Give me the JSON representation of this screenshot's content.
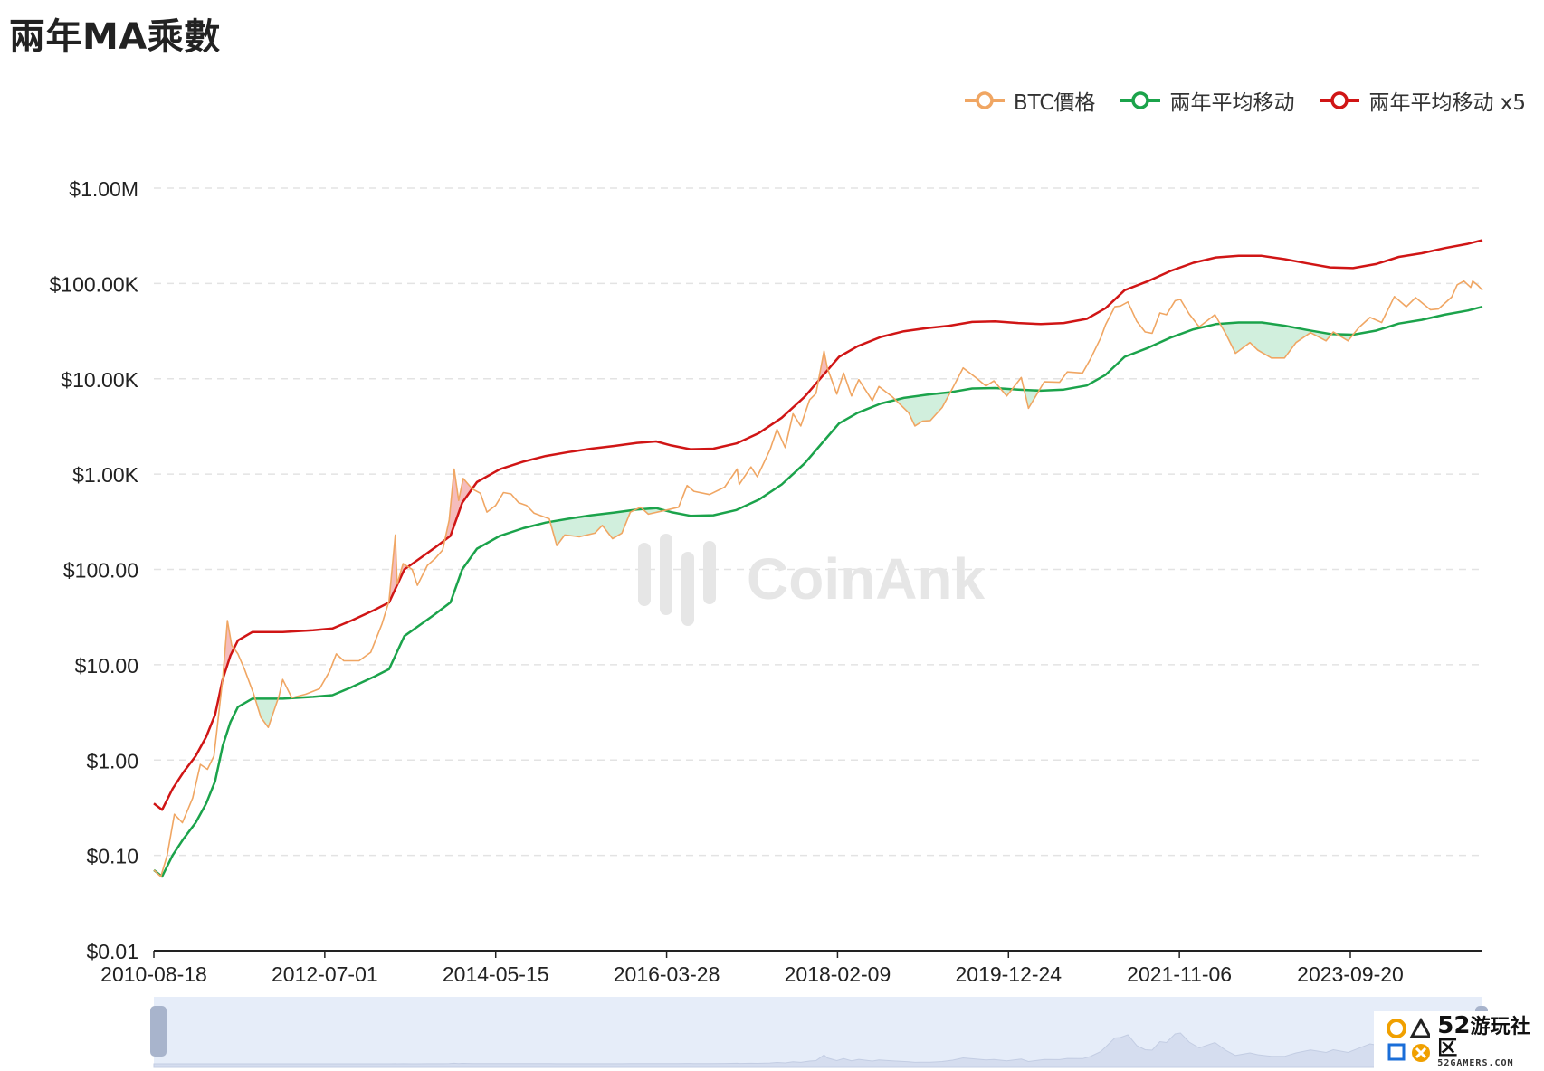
{
  "page": {
    "title": "兩年MA乘數"
  },
  "legend": [
    {
      "label": "BTC價格",
      "color": "#f0a663"
    },
    {
      "label": "兩年平均移动",
      "color": "#1ba34b"
    },
    {
      "label": "兩年平均移动 x5",
      "color": "#d01515"
    }
  ],
  "watermark": {
    "text": "CoinAnk"
  },
  "badge": {
    "number": "52",
    "name": "游玩社区",
    "site": "52GAMERS.COM"
  },
  "colors": {
    "over_fill": "#f3b0b0",
    "under_fill": "#c9ecd7",
    "grid": "#e3e3e3",
    "axis": "#222222",
    "slider_bg": "#e6edf9",
    "slider_handle": "#a8b4cc"
  },
  "chart_data": {
    "type": "line",
    "title": "兩年MA乘數",
    "y_scale": "log",
    "ylim": [
      0.01,
      1000000
    ],
    "y_ticks": [
      {
        "value": 1000000,
        "label": "$1.00M"
      },
      {
        "value": 100000,
        "label": "$100.00K"
      },
      {
        "value": 10000,
        "label": "$10.00K"
      },
      {
        "value": 1000,
        "label": "$1.00K"
      },
      {
        "value": 100,
        "label": "$100.00"
      },
      {
        "value": 10,
        "label": "$10.00"
      },
      {
        "value": 1,
        "label": "$1.00"
      },
      {
        "value": 0.1,
        "label": "$0.10"
      },
      {
        "value": 0.01,
        "label": "$0.01"
      }
    ],
    "xlim": [
      "2010-08-18",
      "2025-03-01"
    ],
    "x_ticks": [
      "2010-08-18",
      "2012-07-01",
      "2014-05-15",
      "2016-03-28",
      "2018-02-09",
      "2019-12-24",
      "2021-11-06",
      "2023-09-20"
    ],
    "legend_position": "top-right",
    "grid": true,
    "series": [
      {
        "name": "BTC價格",
        "key": "price",
        "points": [
          [
            "2010-08-18",
            0.07
          ],
          [
            "2010-09-15",
            0.06
          ],
          [
            "2010-10-10",
            0.1
          ],
          [
            "2010-11-08",
            0.27
          ],
          [
            "2010-12-10",
            0.22
          ],
          [
            "2011-01-20",
            0.4
          ],
          [
            "2011-02-20",
            0.9
          ],
          [
            "2011-03-20",
            0.8
          ],
          [
            "2011-04-15",
            1.1
          ],
          [
            "2011-05-20",
            7
          ],
          [
            "2011-06-08",
            29
          ],
          [
            "2011-06-25",
            16
          ],
          [
            "2011-07-20",
            13
          ],
          [
            "2011-08-15",
            9
          ],
          [
            "2011-09-20",
            5
          ],
          [
            "2011-10-20",
            2.8
          ],
          [
            "2011-11-18",
            2.2
          ],
          [
            "2011-12-31",
            4.7
          ],
          [
            "2012-01-15",
            7
          ],
          [
            "2012-02-20",
            4.5
          ],
          [
            "2012-04-15",
            4.9
          ],
          [
            "2012-06-10",
            5.6
          ],
          [
            "2012-07-20",
            8.5
          ],
          [
            "2012-08-16",
            13
          ],
          [
            "2012-09-15",
            11
          ],
          [
            "2012-11-15",
            11
          ],
          [
            "2013-01-01",
            13.5
          ],
          [
            "2013-02-15",
            27
          ],
          [
            "2013-03-15",
            47
          ],
          [
            "2013-04-09",
            230
          ],
          [
            "2013-04-16",
            70
          ],
          [
            "2013-05-10",
            115
          ],
          [
            "2013-06-15",
            100
          ],
          [
            "2013-07-06",
            68
          ],
          [
            "2013-08-15",
            110
          ],
          [
            "2013-09-15",
            130
          ],
          [
            "2013-10-15",
            160
          ],
          [
            "2013-11-10",
            330
          ],
          [
            "2013-11-30",
            1130
          ],
          [
            "2013-12-18",
            530
          ],
          [
            "2014-01-05",
            900
          ],
          [
            "2014-02-10",
            700
          ],
          [
            "2014-03-15",
            630
          ],
          [
            "2014-04-10",
            400
          ],
          [
            "2014-05-15",
            470
          ],
          [
            "2014-06-15",
            640
          ],
          [
            "2014-07-15",
            620
          ],
          [
            "2014-08-15",
            500
          ],
          [
            "2014-09-15",
            470
          ],
          [
            "2014-10-15",
            390
          ],
          [
            "2014-12-15",
            340
          ],
          [
            "2015-01-14",
            178
          ],
          [
            "2015-02-15",
            230
          ],
          [
            "2015-04-15",
            220
          ],
          [
            "2015-06-15",
            240
          ],
          [
            "2015-07-15",
            290
          ],
          [
            "2015-08-25",
            210
          ],
          [
            "2015-10-01",
            240
          ],
          [
            "2015-11-04",
            400
          ],
          [
            "2015-12-15",
            450
          ],
          [
            "2016-01-15",
            380
          ],
          [
            "2016-03-28",
            420
          ],
          [
            "2016-05-15",
            450
          ],
          [
            "2016-06-18",
            760
          ],
          [
            "2016-07-15",
            660
          ],
          [
            "2016-09-15",
            610
          ],
          [
            "2016-11-15",
            730
          ],
          [
            "2017-01-04",
            1130
          ],
          [
            "2017-01-12",
            780
          ],
          [
            "2017-02-28",
            1190
          ],
          [
            "2017-03-25",
            940
          ],
          [
            "2017-05-15",
            1800
          ],
          [
            "2017-06-12",
            2950
          ],
          [
            "2017-07-15",
            1900
          ],
          [
            "2017-08-15",
            4300
          ],
          [
            "2017-09-15",
            3200
          ],
          [
            "2017-10-20",
            6000
          ],
          [
            "2017-11-15",
            7000
          ],
          [
            "2017-12-17",
            19500
          ],
          [
            "2017-12-30",
            13000
          ],
          [
            "2018-02-06",
            6900
          ],
          [
            "2018-03-05",
            11500
          ],
          [
            "2018-04-06",
            6600
          ],
          [
            "2018-05-05",
            9800
          ],
          [
            "2018-06-28",
            5900
          ],
          [
            "2018-07-24",
            8300
          ],
          [
            "2018-09-15",
            6500
          ],
          [
            "2018-11-20",
            4400
          ],
          [
            "2018-12-15",
            3200
          ],
          [
            "2019-01-15",
            3600
          ],
          [
            "2019-02-15",
            3650
          ],
          [
            "2019-04-03",
            5000
          ],
          [
            "2019-05-15",
            8000
          ],
          [
            "2019-06-26",
            13000
          ],
          [
            "2019-08-15",
            10300
          ],
          [
            "2019-09-25",
            8400
          ],
          [
            "2019-10-27",
            9500
          ],
          [
            "2019-12-17",
            6600
          ],
          [
            "2020-02-13",
            10300
          ],
          [
            "2020-03-13",
            4900
          ],
          [
            "2020-05-15",
            9300
          ],
          [
            "2020-07-15",
            9200
          ],
          [
            "2020-08-15",
            11800
          ],
          [
            "2020-10-15",
            11500
          ],
          [
            "2020-11-15",
            16000
          ],
          [
            "2020-12-27",
            27000
          ],
          [
            "2021-01-15",
            37000
          ],
          [
            "2021-02-21",
            57000
          ],
          [
            "2021-03-15",
            58000
          ],
          [
            "2021-04-14",
            64000
          ],
          [
            "2021-05-20",
            40000
          ],
          [
            "2021-06-22",
            31000
          ],
          [
            "2021-07-20",
            30000
          ],
          [
            "2021-08-20",
            49000
          ],
          [
            "2021-09-15",
            47000
          ],
          [
            "2021-10-20",
            66000
          ],
          [
            "2021-11-10",
            68000
          ],
          [
            "2021-12-15",
            48000
          ],
          [
            "2022-01-24",
            35000
          ],
          [
            "2022-03-28",
            47000
          ],
          [
            "2022-05-12",
            29000
          ],
          [
            "2022-06-18",
            18500
          ],
          [
            "2022-08-15",
            24000
          ],
          [
            "2022-09-15",
            20000
          ],
          [
            "2022-11-09",
            16500
          ],
          [
            "2022-12-31",
            16500
          ],
          [
            "2023-02-15",
            24000
          ],
          [
            "2023-04-14",
            30500
          ],
          [
            "2023-06-15",
            25000
          ],
          [
            "2023-07-14",
            31000
          ],
          [
            "2023-09-11",
            25000
          ],
          [
            "2023-10-24",
            34500
          ],
          [
            "2023-12-08",
            44000
          ],
          [
            "2024-01-23",
            39000
          ],
          [
            "2024-03-14",
            73000
          ],
          [
            "2024-05-01",
            57000
          ],
          [
            "2024-06-07",
            71000
          ],
          [
            "2024-08-05",
            53000
          ],
          [
            "2024-09-06",
            54000
          ],
          [
            "2024-10-29",
            72000
          ],
          [
            "2024-11-20",
            97000
          ],
          [
            "2024-12-17",
            106000
          ],
          [
            "2025-01-13",
            91000
          ],
          [
            "2025-01-21",
            106000
          ],
          [
            "2025-02-10",
            96000
          ],
          [
            "2025-03-01",
            85000
          ]
        ]
      },
      {
        "name": "兩年平均移动",
        "key": "ma",
        "points": [
          [
            "2010-08-18",
            0.07
          ],
          [
            "2010-09-20",
            0.06
          ],
          [
            "2010-11-01",
            0.1
          ],
          [
            "2010-12-15",
            0.15
          ],
          [
            "2011-02-01",
            0.22
          ],
          [
            "2011-03-15",
            0.35
          ],
          [
            "2011-04-20",
            0.6
          ],
          [
            "2011-05-20",
            1.4
          ],
          [
            "2011-06-20",
            2.5
          ],
          [
            "2011-07-20",
            3.6
          ],
          [
            "2011-09-15",
            4.4
          ],
          [
            "2012-01-15",
            4.4
          ],
          [
            "2012-05-15",
            4.6
          ],
          [
            "2012-08-01",
            4.8
          ],
          [
            "2012-10-15",
            5.8
          ],
          [
            "2013-01-15",
            7.5
          ],
          [
            "2013-03-15",
            9
          ],
          [
            "2013-05-15",
            20
          ],
          [
            "2013-07-15",
            26
          ],
          [
            "2013-09-15",
            34
          ],
          [
            "2013-11-15",
            45
          ],
          [
            "2014-01-01",
            100
          ],
          [
            "2014-03-01",
            165
          ],
          [
            "2014-06-01",
            225
          ],
          [
            "2014-09-01",
            270
          ],
          [
            "2014-12-01",
            310
          ],
          [
            "2015-03-01",
            340
          ],
          [
            "2015-06-01",
            370
          ],
          [
            "2015-09-01",
            395
          ],
          [
            "2015-12-01",
            425
          ],
          [
            "2016-02-15",
            440
          ],
          [
            "2016-04-15",
            400
          ],
          [
            "2016-07-01",
            365
          ],
          [
            "2016-10-01",
            370
          ],
          [
            "2017-01-01",
            420
          ],
          [
            "2017-04-01",
            540
          ],
          [
            "2017-07-01",
            780
          ],
          [
            "2017-10-01",
            1300
          ],
          [
            "2017-12-15",
            2200
          ],
          [
            "2018-02-15",
            3400
          ],
          [
            "2018-05-01",
            4400
          ],
          [
            "2018-08-01",
            5500
          ],
          [
            "2018-11-01",
            6300
          ],
          [
            "2019-02-01",
            6800
          ],
          [
            "2019-05-01",
            7200
          ],
          [
            "2019-08-01",
            7900
          ],
          [
            "2019-11-01",
            8000
          ],
          [
            "2020-02-01",
            7700
          ],
          [
            "2020-05-01",
            7500
          ],
          [
            "2020-08-01",
            7700
          ],
          [
            "2020-11-01",
            8500
          ],
          [
            "2021-01-15",
            11000
          ],
          [
            "2021-04-01",
            17000
          ],
          [
            "2021-07-01",
            21000
          ],
          [
            "2021-10-01",
            27000
          ],
          [
            "2022-01-01",
            33000
          ],
          [
            "2022-04-01",
            37500
          ],
          [
            "2022-07-01",
            39000
          ],
          [
            "2022-10-01",
            39000
          ],
          [
            "2023-01-01",
            36000
          ],
          [
            "2023-04-01",
            32500
          ],
          [
            "2023-07-01",
            29500
          ],
          [
            "2023-10-01",
            29000
          ],
          [
            "2024-01-01",
            32000
          ],
          [
            "2024-04-01",
            38000
          ],
          [
            "2024-07-01",
            41500
          ],
          [
            "2024-10-01",
            47000
          ],
          [
            "2025-01-01",
            52000
          ],
          [
            "2025-03-01",
            57000
          ]
        ]
      },
      {
        "name": "兩年平均移动 x5",
        "key": "ma5",
        "derived_from": "兩年平均移动",
        "multiplier": 5
      }
    ]
  }
}
